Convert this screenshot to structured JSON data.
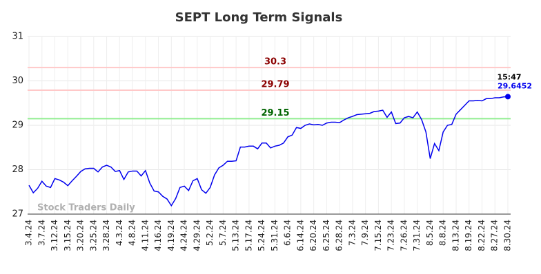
{
  "chart_data": {
    "type": "line",
    "title": "SEPT Long Term Signals",
    "categories": [
      "3.4.24",
      null,
      null,
      "3.7.24",
      null,
      null,
      "3.12.24",
      null,
      null,
      "3.15.24",
      null,
      null,
      "3.20.24",
      null,
      null,
      "3.25.24",
      null,
      null,
      "3.28.24",
      null,
      null,
      "4.3.24",
      null,
      null,
      "4.8.24",
      null,
      null,
      "4.11.24",
      null,
      null,
      "4.16.24",
      null,
      null,
      "4.19.24",
      null,
      null,
      "4.24.24",
      null,
      null,
      "4.29.24",
      null,
      null,
      "5.2.24",
      null,
      null,
      "5.7.24",
      null,
      null,
      "5.13.24",
      null,
      null,
      "5.17.24",
      null,
      null,
      "5.24.24",
      null,
      null,
      "5.31.24",
      null,
      null,
      "6.6.24",
      null,
      null,
      "6.14.24",
      null,
      null,
      "6.20.24",
      null,
      null,
      "6.25.24",
      null,
      null,
      "6.28.24",
      null,
      null,
      "7.3.24",
      null,
      null,
      "7.9.24",
      null,
      null,
      "7.15.24",
      null,
      null,
      "7.23.24",
      null,
      null,
      "7.26.24",
      null,
      null,
      "7.31.24",
      null,
      null,
      "8.5.24",
      null,
      null,
      "8.8.24",
      null,
      null,
      "8.13.24",
      null,
      null,
      "8.19.24",
      null,
      null,
      "8.22.24",
      null,
      null,
      "8.27.24",
      null,
      null,
      "8.30.24"
    ],
    "values": [
      27.65,
      27.48,
      27.58,
      27.74,
      27.63,
      27.6,
      27.8,
      27.77,
      27.72,
      27.64,
      27.75,
      27.85,
      27.96,
      28.02,
      28.03,
      28.03,
      27.95,
      28.06,
      28.1,
      28.06,
      27.96,
      27.98,
      27.78,
      27.95,
      27.97,
      27.97,
      27.86,
      27.98,
      27.7,
      27.52,
      27.5,
      27.4,
      27.34,
      27.19,
      27.35,
      27.6,
      27.63,
      27.53,
      27.75,
      27.8,
      27.55,
      27.47,
      27.6,
      27.88,
      28.04,
      28.1,
      28.19,
      28.19,
      28.2,
      28.51,
      28.51,
      28.53,
      28.53,
      28.47,
      28.6,
      28.6,
      28.49,
      28.53,
      28.55,
      28.6,
      28.74,
      28.78,
      28.95,
      28.93,
      29.0,
      29.03,
      29.01,
      29.02,
      29.0,
      29.05,
      29.07,
      29.07,
      29.06,
      29.12,
      29.17,
      29.2,
      29.24,
      29.25,
      29.26,
      29.27,
      29.31,
      29.32,
      29.34,
      29.18,
      29.3,
      29.04,
      29.05,
      29.17,
      29.2,
      29.17,
      29.3,
      29.13,
      28.85,
      28.25,
      28.59,
      28.43,
      28.85,
      29.0,
      29.02,
      29.25,
      29.35,
      29.45,
      29.55,
      29.55,
      29.56,
      29.55,
      29.6,
      29.6,
      29.62,
      29.62,
      29.64,
      29.6452
    ],
    "color": "#0000ee",
    "ylim": [
      27,
      31
    ],
    "yticks": [
      27,
      28,
      29,
      30,
      31
    ],
    "grid": true,
    "reference_lines": [
      {
        "value": 30.3,
        "color": "#ffc8c8",
        "label_color": "#8b0000"
      },
      {
        "value": 29.79,
        "color": "#ffc8c8",
        "label_color": "#8b0000"
      },
      {
        "value": 29.15,
        "color": "#90ee90",
        "label_color": "#006400"
      }
    ],
    "last_time": "15:47",
    "watermark": "Stock Traders Daily"
  }
}
